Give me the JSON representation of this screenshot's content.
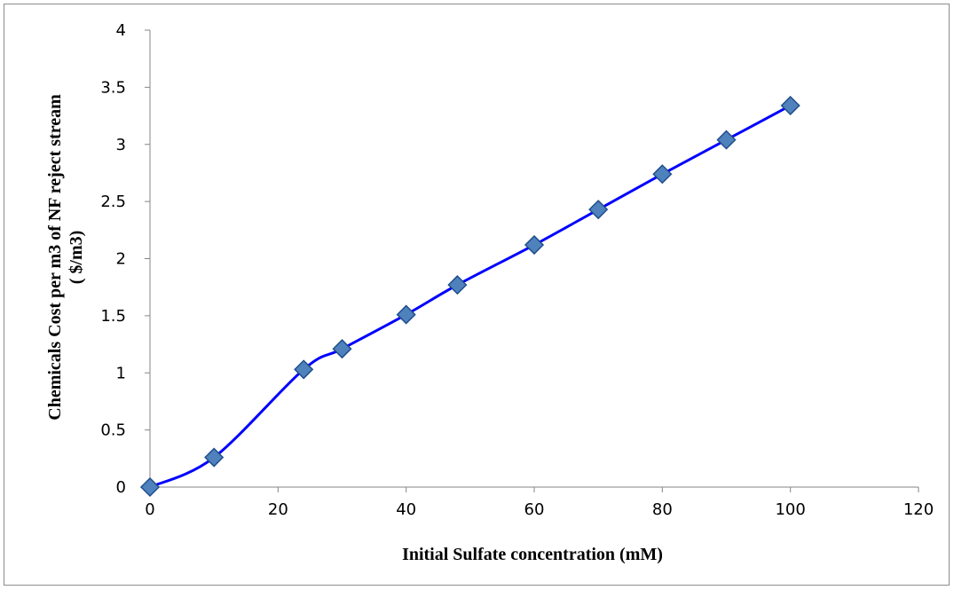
{
  "chart_data": {
    "type": "scatter",
    "title": "",
    "xlabel": "Initial Sulfate concentration (mM)",
    "ylabel_line1": "Chemicals Cost per m3 of NF reject stream",
    "ylabel_line2": "( $/m3)",
    "xlim": [
      0,
      120
    ],
    "ylim": [
      0,
      4
    ],
    "x_ticks": [
      0,
      20,
      40,
      60,
      80,
      100,
      120
    ],
    "y_ticks": [
      0,
      0.5,
      1,
      1.5,
      2,
      2.5,
      3,
      3.5,
      4
    ],
    "x_tick_labels": [
      "0",
      "20",
      "40",
      "60",
      "80",
      "100",
      "120"
    ],
    "y_tick_labels": [
      "0",
      "0.5",
      "1",
      "1.5",
      "2",
      "2.5",
      "3",
      "3.5",
      "4"
    ],
    "grid": false,
    "legend": "none",
    "line_style": "smoothed",
    "series": [
      {
        "x": [
          0,
          10,
          24,
          30,
          40,
          48,
          60,
          70,
          80,
          90,
          100
        ],
        "y": [
          0,
          0.26,
          1.03,
          1.21,
          1.51,
          1.77,
          2.12,
          2.43,
          2.74,
          3.04,
          3.34
        ]
      }
    ],
    "colors": {
      "line": "#0000ff",
      "marker_fill": "#4f81bd",
      "marker_stroke": "#1f4e8c",
      "axis": "#868686"
    }
  }
}
